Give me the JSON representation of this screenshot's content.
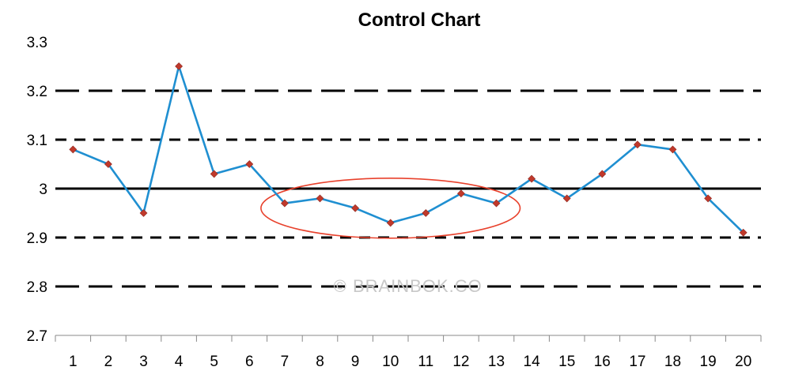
{
  "chart_data": {
    "type": "line",
    "title": "Control Chart",
    "xlabel": "",
    "ylabel": "",
    "categories": [
      "1",
      "2",
      "3",
      "4",
      "5",
      "6",
      "7",
      "8",
      "9",
      "10",
      "11",
      "12",
      "13",
      "14",
      "15",
      "16",
      "17",
      "18",
      "19",
      "20"
    ],
    "series": [
      {
        "values": [
          3.08,
          3.05,
          2.95,
          3.25,
          3.03,
          3.05,
          2.97,
          2.98,
          2.96,
          2.93,
          2.95,
          2.99,
          2.97,
          3.02,
          2.98,
          3.03,
          3.09,
          3.08,
          2.98,
          2.91
        ]
      }
    ],
    "ylim": [
      2.7,
      3.3
    ],
    "yticks": [
      "2.7",
      "2.8",
      "2.9",
      "3",
      "3.1",
      "3.2",
      "3.3"
    ],
    "center_line": 3.0,
    "limit_lines": [
      {
        "value": 3.2,
        "style": "long-dash"
      },
      {
        "value": 3.1,
        "style": "short-dash"
      },
      {
        "value": 2.9,
        "style": "short-dash"
      },
      {
        "value": 2.8,
        "style": "long-dash"
      }
    ],
    "highlight_range": {
      "from": "7",
      "to": "13",
      "shape": "ellipse"
    },
    "grid": false,
    "legend": "none",
    "colors": {
      "line": "#1f8fd1",
      "marker": "#c0392b",
      "ellipse": "#e8412c",
      "limits": "#000000"
    }
  },
  "watermark": "© BRAINBOK.CO"
}
